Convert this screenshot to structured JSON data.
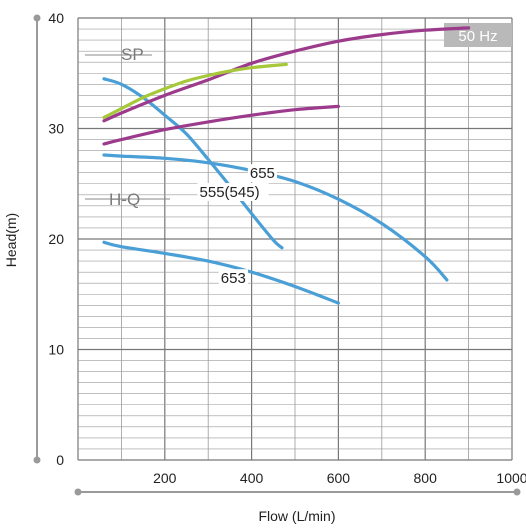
{
  "chart_data": {
    "type": "line",
    "title": "",
    "xlabel": "Flow (L/min)",
    "ylabel": "Head(m)",
    "xlim": [
      0,
      1000
    ],
    "ylim": [
      0,
      40
    ],
    "x_ticks": [
      0,
      200,
      400,
      600,
      800,
      1000
    ],
    "x_tick_labels": [
      "200",
      "400",
      "600",
      "800",
      "1000"
    ],
    "y_ticks": [
      0,
      10,
      20,
      30,
      40
    ],
    "y_tick_labels": [
      "0",
      "10",
      "20",
      "30",
      "40"
    ],
    "grid": true,
    "frequency_badge": "50 Hz",
    "section_labels": {
      "sp": "SP",
      "hq": "H-Q"
    },
    "series": [
      {
        "name": "555(545)",
        "group": "H-Q",
        "color": "#4a9fd6",
        "x": [
          60,
          100,
          150,
          200,
          250,
          300,
          350,
          400,
          450,
          470
        ],
        "y": [
          34.5,
          34.0,
          32.8,
          31.2,
          29.5,
          27.2,
          24.8,
          22.3,
          19.9,
          19.2
        ]
      },
      {
        "name": "655",
        "group": "H-Q",
        "color": "#4a9fd6",
        "x": [
          60,
          100,
          200,
          300,
          400,
          500,
          600,
          700,
          800,
          850
        ],
        "y": [
          27.6,
          27.5,
          27.3,
          26.9,
          26.2,
          25.2,
          23.6,
          21.4,
          18.4,
          16.3
        ]
      },
      {
        "name": "653",
        "group": "H-Q",
        "color": "#4a9fd6",
        "x": [
          60,
          100,
          200,
          300,
          400,
          500,
          600
        ],
        "y": [
          19.7,
          19.3,
          18.7,
          18.0,
          17.0,
          15.7,
          14.2
        ]
      },
      {
        "name": "",
        "group": "SP",
        "color": "#9c3a8c",
        "x": [
          60,
          100,
          200,
          300,
          400,
          500,
          600,
          700,
          800,
          900
        ],
        "y": [
          30.7,
          31.4,
          33.0,
          34.4,
          35.9,
          37.0,
          37.9,
          38.5,
          38.9,
          39.1
        ]
      },
      {
        "name": "",
        "group": "SP",
        "color": "#a7c83a",
        "x": [
          60,
          100,
          150,
          200,
          250,
          300,
          350,
          400,
          450,
          480
        ],
        "y": [
          31.0,
          31.8,
          32.8,
          33.6,
          34.3,
          34.8,
          35.2,
          35.5,
          35.7,
          35.8
        ]
      },
      {
        "name": "",
        "group": "SP",
        "color": "#9c3a8c",
        "x": [
          60,
          100,
          200,
          300,
          400,
          500,
          600
        ],
        "y": [
          28.6,
          29.0,
          29.9,
          30.6,
          31.2,
          31.7,
          32.0
        ]
      }
    ]
  }
}
